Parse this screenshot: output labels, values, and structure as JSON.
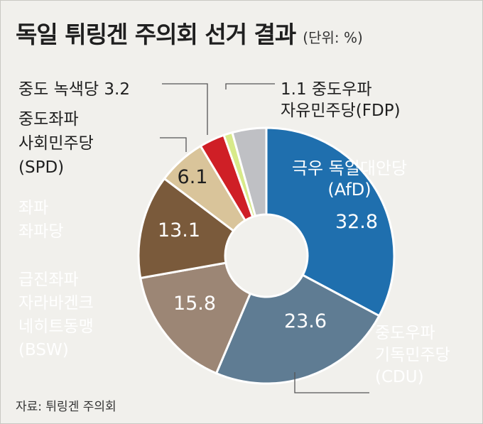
{
  "title": "독일 튀링겐 주의회 선거 결과",
  "unit": "(단위: %)",
  "source": "자료: 튀링겐 주의회",
  "chart_data": {
    "type": "pie",
    "donut": true,
    "slices": [
      {
        "label_lines": [
          "극우 독일대안당",
          "(AfD)"
        ],
        "value": 32.8,
        "value_text": "32.8",
        "color": "#1f6fae",
        "label_color": "#ffffff"
      },
      {
        "label_lines": [
          "중도우파",
          "기독민주당",
          "(CDU)"
        ],
        "value": 23.6,
        "value_text": "23.6",
        "color": "#5f7c93",
        "label_color": "#ffffff"
      },
      {
        "label_lines": [
          "급진좌파",
          "자라바겐크",
          "네히트동맹",
          "(BSW)"
        ],
        "value": 15.8,
        "value_text": "15.8",
        "color": "#9c8675",
        "label_color": "#ffffff"
      },
      {
        "label_lines": [
          "좌파",
          "좌파당"
        ],
        "value": 13.1,
        "value_text": "13.1",
        "color": "#7a5a3b",
        "label_color": "#ffffff"
      },
      {
        "label_lines": [
          "중도좌파",
          "사회민주당",
          "(SPD)"
        ],
        "value": 6.1,
        "value_text": "6.1",
        "color": "#d9c49a",
        "label_color": "#1f1f1f"
      },
      {
        "label_lines": [
          "중도 녹색당 3.2"
        ],
        "value": 3.2,
        "value_text": "",
        "color": "#cf1f26",
        "label_color": "#1f1f1f"
      },
      {
        "label_lines": [
          "1.1 중도우파",
          "자유민주당(FDP)"
        ],
        "value": 1.1,
        "value_text": "",
        "color": "#d8ea8a",
        "label_color": "#1f1f1f"
      },
      {
        "label_lines": [],
        "value": 4.3,
        "value_text": "",
        "color": "#bfc0c4",
        "label_color": "#1f1f1f"
      }
    ]
  }
}
